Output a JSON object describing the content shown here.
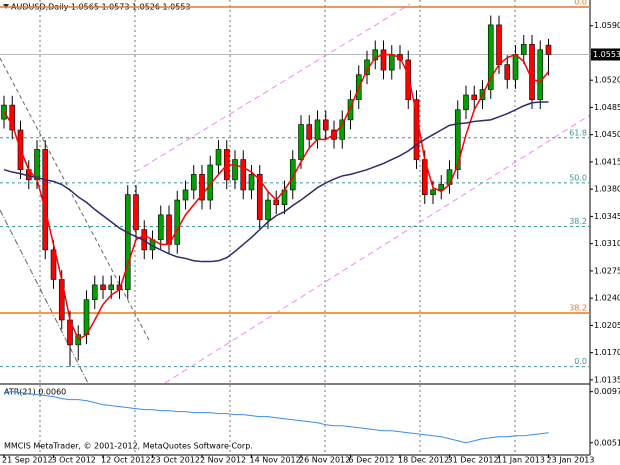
{
  "chart_data": {
    "type": "candlestick",
    "title": "AUDUSD,Daily  1.0565 1.0573 1.0526 1.0553",
    "up_color": "#00a000",
    "down_color": "#ff0000",
    "open": [
      1.047,
      1.0488,
      1.0456,
      1.0405,
      1.0392,
      1.0431,
      1.0302,
      1.0264,
      1.0212,
      1.018,
      1.0193,
      1.0238,
      1.0257,
      1.0251,
      1.0257,
      1.0251,
      1.0373,
      1.0328,
      1.0302,
      1.0315,
      1.0347,
      1.0309,
      1.0366,
      1.0379,
      1.0399,
      1.0366,
      1.0411,
      1.0431,
      1.0392,
      1.0418,
      1.0379,
      1.0399,
      1.0341,
      1.0366,
      1.036,
      1.0379,
      1.0418,
      1.0463,
      1.0444,
      1.0469,
      1.0456,
      1.0444,
      1.0469,
      1.0495,
      1.0527,
      1.0546,
      1.0559,
      1.0533,
      1.0553,
      1.0546,
      1.0495,
      1.0418,
      1.0373,
      1.0379,
      1.0386,
      1.0405,
      1.0482,
      1.0501,
      1.0495,
      1.0508,
      1.0591,
      1.054,
      1.0521,
      1.0553,
      1.0566,
      1.0495,
      1.0565
    ],
    "high": [
      1.05,
      1.05,
      1.0468,
      1.0417,
      1.0443,
      1.0443,
      1.0314,
      1.0276,
      1.0224,
      1.0205,
      1.025,
      1.0269,
      1.0269,
      1.0269,
      1.0269,
      1.0385,
      1.0385,
      1.034,
      1.0327,
      1.0359,
      1.0359,
      1.0378,
      1.0391,
      1.0411,
      1.0411,
      1.0423,
      1.0443,
      1.0443,
      1.043,
      1.043,
      1.0411,
      1.0411,
      1.0378,
      1.0378,
      1.0391,
      1.043,
      1.0475,
      1.0475,
      1.0481,
      1.0481,
      1.0468,
      1.0481,
      1.0507,
      1.0539,
      1.0558,
      1.0571,
      1.0571,
      1.0565,
      1.0565,
      1.0558,
      1.0507,
      1.043,
      1.0391,
      1.0398,
      1.0417,
      1.0494,
      1.0513,
      1.0513,
      1.052,
      1.0603,
      1.0603,
      1.0552,
      1.0565,
      1.0578,
      1.0578,
      1.0571,
      1.0573
    ],
    "low": [
      1.0458,
      1.0444,
      1.0393,
      1.038,
      1.038,
      1.029,
      1.0252,
      1.02,
      1.0152,
      1.016,
      1.0181,
      1.0226,
      1.0239,
      1.0239,
      1.0239,
      1.0239,
      1.0316,
      1.029,
      1.029,
      1.0303,
      1.0297,
      1.0297,
      1.0354,
      1.0367,
      1.0354,
      1.0354,
      1.0399,
      1.038,
      1.038,
      1.0367,
      1.0367,
      1.0329,
      1.0329,
      1.0348,
      1.0348,
      1.0367,
      1.0406,
      1.0432,
      1.0432,
      1.0444,
      1.0432,
      1.0432,
      1.0457,
      1.0483,
      1.0515,
      1.0534,
      1.0521,
      1.0521,
      1.0534,
      1.0483,
      1.0406,
      1.0361,
      1.0361,
      1.0367,
      1.0374,
      1.0393,
      1.047,
      1.0483,
      1.0483,
      1.0496,
      1.0528,
      1.0509,
      1.0509,
      1.0541,
      1.0483,
      1.0483,
      1.0526
    ],
    "close": [
      1.0488,
      1.0456,
      1.0405,
      1.0392,
      1.0431,
      1.0302,
      1.0264,
      1.0212,
      1.018,
      1.0193,
      1.0238,
      1.0257,
      1.0251,
      1.0257,
      1.0251,
      1.0373,
      1.0328,
      1.0302,
      1.0315,
      1.0347,
      1.0309,
      1.0366,
      1.0379,
      1.0399,
      1.0366,
      1.0411,
      1.0431,
      1.0392,
      1.0418,
      1.0379,
      1.0399,
      1.0341,
      1.0366,
      1.036,
      1.0379,
      1.0418,
      1.0463,
      1.0444,
      1.0469,
      1.0456,
      1.0444,
      1.0469,
      1.0495,
      1.0527,
      1.0546,
      1.0559,
      1.0533,
      1.0553,
      1.0546,
      1.0495,
      1.0418,
      1.0373,
      1.0379,
      1.0386,
      1.0405,
      1.0482,
      1.0501,
      1.0495,
      1.0508,
      1.0591,
      1.054,
      1.0521,
      1.0553,
      1.0566,
      1.0495,
      1.0559,
      1.0553
    ],
    "series": [
      {
        "color": "#ff0000",
        "values": [
          1.0479,
          1.0463,
          1.0431,
          1.0405,
          1.0392,
          1.0354,
          1.0309,
          1.0264,
          1.0212,
          1.0187,
          1.0193,
          1.0212,
          1.0232,
          1.0244,
          1.0251,
          1.0283,
          1.0315,
          1.0321,
          1.0315,
          1.0309,
          1.0309,
          1.0328,
          1.0347,
          1.036,
          1.0373,
          1.0386,
          1.0399,
          1.0411,
          1.0411,
          1.0408,
          1.0402,
          1.0392,
          1.0377,
          1.0366,
          1.0379,
          1.0395,
          1.0415,
          1.0433,
          1.0444,
          1.0444,
          1.045,
          1.0463,
          1.0485,
          1.051,
          1.0533,
          1.0549,
          1.0553,
          1.0553,
          1.0549,
          1.0527,
          1.0476,
          1.0418,
          1.0382,
          1.0377,
          1.0386,
          1.0411,
          1.045,
          1.0482,
          1.0501,
          1.0523,
          1.054,
          1.0549,
          1.0553,
          1.0544,
          1.0521,
          1.0518,
          1.0531
        ]
      },
      {
        "color": "#2e2a6e",
        "values": [
          1.0405,
          1.0402,
          1.04,
          1.0397,
          1.0395,
          1.0392,
          1.039,
          1.0386,
          1.0379,
          1.037,
          1.0363,
          1.0354,
          1.0346,
          1.0338,
          1.033,
          1.0324,
          1.0319,
          1.0314,
          1.0307,
          1.0302,
          1.0297,
          1.0293,
          1.0291,
          1.0288,
          1.0287,
          1.0287,
          1.0288,
          1.0292,
          1.03,
          1.0309,
          1.0318,
          1.0328,
          1.0338,
          1.0346,
          1.0351,
          1.0359,
          1.0366,
          1.0374,
          1.0382,
          1.0388,
          1.0393,
          1.0397,
          1.0399,
          1.0402,
          1.0405,
          1.0409,
          1.0413,
          1.0418,
          1.0423,
          1.0429,
          1.0437,
          1.0444,
          1.045,
          1.0456,
          1.0462,
          1.0464,
          1.0465,
          1.0467,
          1.0468,
          1.0469,
          1.0473,
          1.0477,
          1.0482,
          1.0487,
          1.0491,
          1.0492,
          1.0492
        ]
      }
    ],
    "ylim": [
      1.0131,
      1.0623
    ],
    "yticks": [
      {
        "value": 1.0135,
        "label": "1.0135"
      },
      {
        "value": 1.017,
        "label": "1.0170"
      },
      {
        "value": 1.0205,
        "label": "1.0205"
      },
      {
        "value": 1.024,
        "label": "1.0240"
      },
      {
        "value": 1.0275,
        "label": "1.0275"
      },
      {
        "value": 1.031,
        "label": "1.0310"
      },
      {
        "value": 1.0345,
        "label": "1.0345"
      },
      {
        "value": 1.038,
        "label": "1.0380"
      },
      {
        "value": 1.0415,
        "label": "1.0415"
      },
      {
        "value": 1.045,
        "label": "1.0450"
      },
      {
        "value": 1.0485,
        "label": "1.0485"
      },
      {
        "value": 1.052,
        "label": "1.0520"
      },
      {
        "value": 1.059,
        "label": "1.0590"
      }
    ],
    "xticks": [
      {
        "value": 0,
        "label": "21 Sep 2012"
      },
      {
        "value": 6,
        "label": "3 Oct 2012"
      },
      {
        "value": 12,
        "label": "12 Oct 2012"
      },
      {
        "value": 18,
        "label": "23 Oct 2012"
      },
      {
        "value": 24,
        "label": "2 Nov 2012"
      },
      {
        "value": 30,
        "label": "14 Nov 2012"
      },
      {
        "value": 36,
        "label": "26 Nov 2012"
      },
      {
        "value": 42,
        "label": "6 Dec 2012"
      },
      {
        "value": 48,
        "label": "18 Dec 2012"
      },
      {
        "value": 54,
        "label": "31 Dec 2012"
      },
      {
        "value": 60,
        "label": "11 Jan 2013"
      },
      {
        "value": 66,
        "label": "23 Jan 2013"
      }
    ],
    "bid": 1.0553,
    "fibonacci": [
      {
        "value": 1.0614,
        "label": "0.0",
        "color": "#e8782a"
      },
      {
        "value": 1.0446,
        "label": "61.8",
        "color": "#3c9a9a"
      },
      {
        "value": 1.0388,
        "label": "50.0",
        "color": "#3c9a9a"
      },
      {
        "value": 1.0332,
        "label": "38.2",
        "color": "#3c9a9a"
      },
      {
        "value": 1.0221,
        "label": "38.2",
        "color": "#e8782a"
      },
      {
        "value": 1.0152,
        "label": "0.0",
        "color": "#3c9a9a"
      }
    ],
    "indicator": {
      "type": "line",
      "title": "ATR(21) 0.0060",
      "color": "#3a8ee6",
      "ylim": [
        0.004,
        0.0103
      ],
      "yticks": [
        0.0051,
        0.0097
      ],
      "values": [
        0.00961,
        0.0097,
        0.00961,
        0.00952,
        0.00943,
        0.00934,
        0.00925,
        0.00907,
        0.00898,
        0.00898,
        0.00889,
        0.00871,
        0.00853,
        0.00844,
        0.00835,
        0.00826,
        0.00817,
        0.00808,
        0.00808,
        0.00799,
        0.00799,
        0.0079,
        0.0079,
        0.00781,
        0.00781,
        0.00781,
        0.00772,
        0.00772,
        0.00763,
        0.00763,
        0.00754,
        0.00745,
        0.00745,
        0.00735,
        0.00726,
        0.00717,
        0.00708,
        0.00699,
        0.0069,
        0.00672,
        0.00663,
        0.00663,
        0.00654,
        0.00645,
        0.00636,
        0.00627,
        0.00618,
        0.00618,
        0.00609,
        0.006,
        0.00591,
        0.00582,
        0.00573,
        0.00564,
        0.00546,
        0.00528,
        0.0051,
        0.00528,
        0.00546,
        0.00555,
        0.00564,
        0.00564,
        0.00573,
        0.00573,
        0.00582,
        0.00591,
        0.006
      ]
    },
    "footer": "MMCIS MetaTrader, © 2001-2012, MetaQuotes Software Corp."
  }
}
